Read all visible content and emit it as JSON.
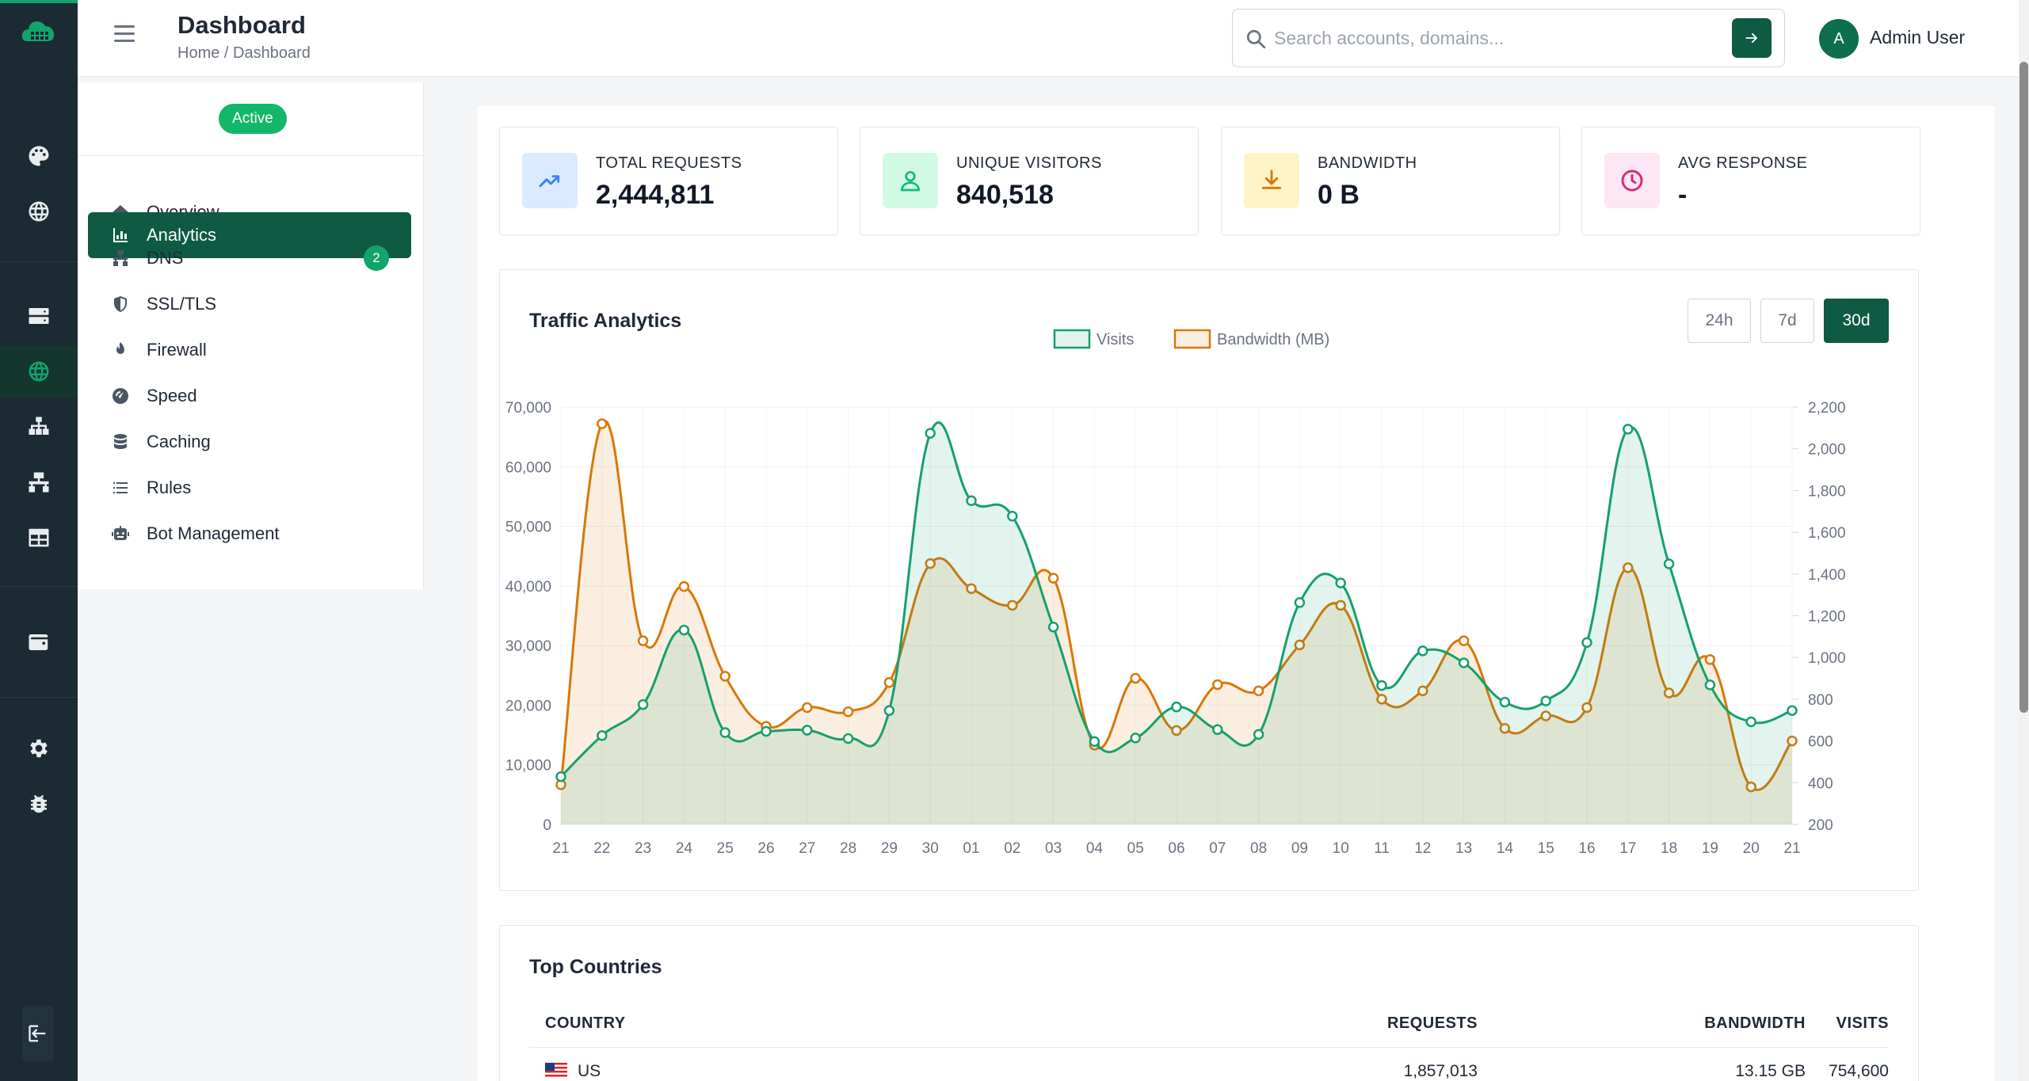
{
  "header": {
    "title": "Dashboard",
    "breadcrumb": "Home / Dashboard",
    "search_placeholder": "Search accounts, domains...",
    "user_initial": "A",
    "user_name": "Admin User"
  },
  "rail": {
    "icons": [
      "palette-icon",
      "globe-icon",
      "server-icon",
      "globe-icon",
      "sitemap-icon",
      "network-icon",
      "table-icon",
      "wallet-icon",
      "gear-icon",
      "bug-icon",
      "logout-icon"
    ],
    "active": "globe-icon"
  },
  "subnav": {
    "status": "Active",
    "items": [
      {
        "label": "Overview",
        "icon": "home-icon"
      },
      {
        "label": "Analytics",
        "icon": "chart-icon",
        "active": true
      },
      {
        "label": "DNS",
        "icon": "network-icon",
        "badge": "2"
      },
      {
        "label": "SSL/TLS",
        "icon": "shield-icon"
      },
      {
        "label": "Firewall",
        "icon": "fire-icon"
      },
      {
        "label": "Speed",
        "icon": "gauge-icon"
      },
      {
        "label": "Caching",
        "icon": "database-icon"
      },
      {
        "label": "Rules",
        "icon": "list-icon"
      },
      {
        "label": "Bot Management",
        "icon": "robot-icon"
      }
    ]
  },
  "stats": [
    {
      "label": "TOTAL REQUESTS",
      "value": "2,444,811",
      "icon": "trend-up-icon",
      "color": "#3b82f6",
      "bg": "#dbeafe"
    },
    {
      "label": "UNIQUE VISITORS",
      "value": "840,518",
      "icon": "user-icon",
      "color": "#10b981",
      "bg": "#d1fae5"
    },
    {
      "label": "BANDWIDTH",
      "value": "0 B",
      "icon": "download-icon",
      "color": "#d97706",
      "bg": "#fef3c7"
    },
    {
      "label": "AVG RESPONSE",
      "value": "-",
      "icon": "clock-icon",
      "color": "#db2777",
      "bg": "#fce7f3"
    }
  ],
  "traffic": {
    "title": "Traffic Analytics",
    "ranges": [
      "24h",
      "7d",
      "30d"
    ],
    "active_range": "30d"
  },
  "chart_data": {
    "type": "line",
    "title": "Traffic Analytics",
    "x": [
      "21",
      "22",
      "23",
      "24",
      "25",
      "26",
      "27",
      "28",
      "29",
      "30",
      "01",
      "02",
      "03",
      "04",
      "05",
      "06",
      "07",
      "08",
      "09",
      "10",
      "11",
      "12",
      "13",
      "14",
      "15",
      "16",
      "17",
      "18",
      "19",
      "20",
      "21"
    ],
    "series": [
      {
        "name": "Visits",
        "axis": "left",
        "color": "#16a06b",
        "values": [
          8000,
          14900,
          20100,
          32600,
          15400,
          15600,
          15800,
          14400,
          19100,
          65600,
          54300,
          51700,
          33100,
          13900,
          14500,
          19700,
          15900,
          15100,
          37200,
          40500,
          23300,
          29100,
          27100,
          20500,
          20700,
          30500,
          66300,
          43700,
          23400,
          17200,
          19100
        ]
      },
      {
        "name": "Bandwidth (MB)",
        "axis": "right",
        "color": "#d97706",
        "values": [
          390,
          2120,
          1080,
          1340,
          910,
          670,
          760,
          740,
          880,
          1450,
          1330,
          1250,
          1380,
          580,
          900,
          650,
          870,
          840,
          1060,
          1250,
          800,
          840,
          1080,
          660,
          720,
          760,
          1430,
          830,
          990,
          380,
          600
        ]
      }
    ],
    "y_left": {
      "min": 0,
      "max": 70000,
      "ticks": [
        "0",
        "10,000",
        "20,000",
        "30,000",
        "40,000",
        "50,000",
        "60,000",
        "70,000"
      ]
    },
    "y_right": {
      "min": 200,
      "max": 2200,
      "ticks": [
        "200",
        "400",
        "600",
        "800",
        "1,000",
        "1,200",
        "1,400",
        "1,600",
        "1,800",
        "2,000",
        "2,200"
      ]
    },
    "legend": "top-center",
    "grid": true
  },
  "countries": {
    "title": "Top Countries",
    "columns": [
      "COUNTRY",
      "REQUESTS",
      "BANDWIDTH",
      "VISITS"
    ],
    "rows": [
      {
        "country": "US",
        "requests": "1,857,013",
        "bandwidth": "13.15 GB",
        "visits": "754,600"
      }
    ]
  }
}
